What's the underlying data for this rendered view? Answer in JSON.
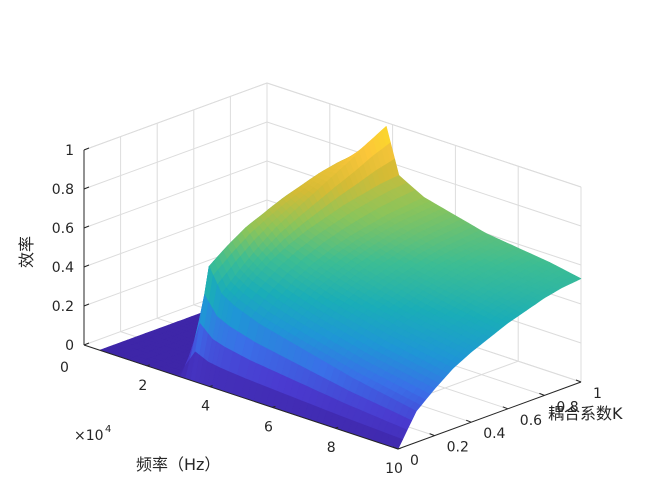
{
  "chart_data": {
    "type": "surface",
    "title": "",
    "xlabel": "频率（Hz）",
    "ylabel": "耦合系数K",
    "zlabel": "效率",
    "x_multiplier": "×10",
    "x_multiplier_exp": "4",
    "xlim": [
      0,
      10
    ],
    "ylim": [
      0,
      1
    ],
    "zlim": [
      0,
      1
    ],
    "x_ticks": [
      "2",
      "4",
      "6",
      "8",
      "10"
    ],
    "y_ticks": [
      "0",
      "0.2",
      "0.4",
      "0.6",
      "0.8",
      "1"
    ],
    "z_ticks": [
      "0",
      "0.2",
      "0.4",
      "0.6",
      "0.8",
      "1"
    ],
    "corner_zero_label": "0",
    "grid": true,
    "colormap": [
      "#3e26a8",
      "#4a3bd0",
      "#3a6fe8",
      "#1f96d6",
      "#1aadb8",
      "#3dbd93",
      "#8cc45a",
      "#d5bb35",
      "#fcc63a",
      "#f9e71e"
    ],
    "surface_x": [
      0.5,
      2.0,
      2.9,
      3.4,
      3.8,
      4.2,
      5.0,
      6.0,
      7.0,
      8.0,
      9.0,
      10.0
    ],
    "surface_y": [
      0,
      0.1,
      0.2,
      0.3,
      0.4,
      0.5,
      0.6,
      0.7,
      0.8,
      0.9,
      1.0
    ],
    "surface_z": [
      [
        0,
        0,
        0,
        0,
        0,
        0,
        0,
        0,
        0,
        0,
        0
      ],
      [
        0,
        0,
        0,
        0,
        0,
        0,
        0,
        0,
        0,
        0,
        0
      ],
      [
        0,
        0,
        0,
        0,
        0,
        0,
        0,
        0,
        0,
        0,
        0
      ],
      [
        0,
        0.55,
        0.62,
        0.68,
        0.72,
        0.76,
        0.79,
        0.82,
        0.84,
        0.85,
        0.86
      ],
      [
        0,
        0.43,
        0.52,
        0.6,
        0.67,
        0.72,
        0.77,
        0.82,
        0.87,
        0.93,
        0.98
      ],
      [
        0,
        0.39,
        0.48,
        0.55,
        0.6,
        0.64,
        0.67,
        0.7,
        0.72,
        0.74,
        0.75
      ],
      [
        0,
        0.34,
        0.43,
        0.5,
        0.55,
        0.59,
        0.62,
        0.64,
        0.66,
        0.67,
        0.68
      ],
      [
        0,
        0.3,
        0.38,
        0.45,
        0.5,
        0.54,
        0.57,
        0.6,
        0.62,
        0.63,
        0.64
      ],
      [
        0,
        0.26,
        0.34,
        0.41,
        0.46,
        0.5,
        0.53,
        0.56,
        0.58,
        0.59,
        0.6
      ],
      [
        0,
        0.22,
        0.3,
        0.37,
        0.42,
        0.46,
        0.5,
        0.53,
        0.55,
        0.57,
        0.58
      ],
      [
        0,
        0.19,
        0.27,
        0.34,
        0.39,
        0.43,
        0.47,
        0.5,
        0.52,
        0.54,
        0.56
      ],
      [
        0,
        0.16,
        0.24,
        0.31,
        0.36,
        0.4,
        0.44,
        0.47,
        0.5,
        0.52,
        0.53
      ]
    ]
  }
}
